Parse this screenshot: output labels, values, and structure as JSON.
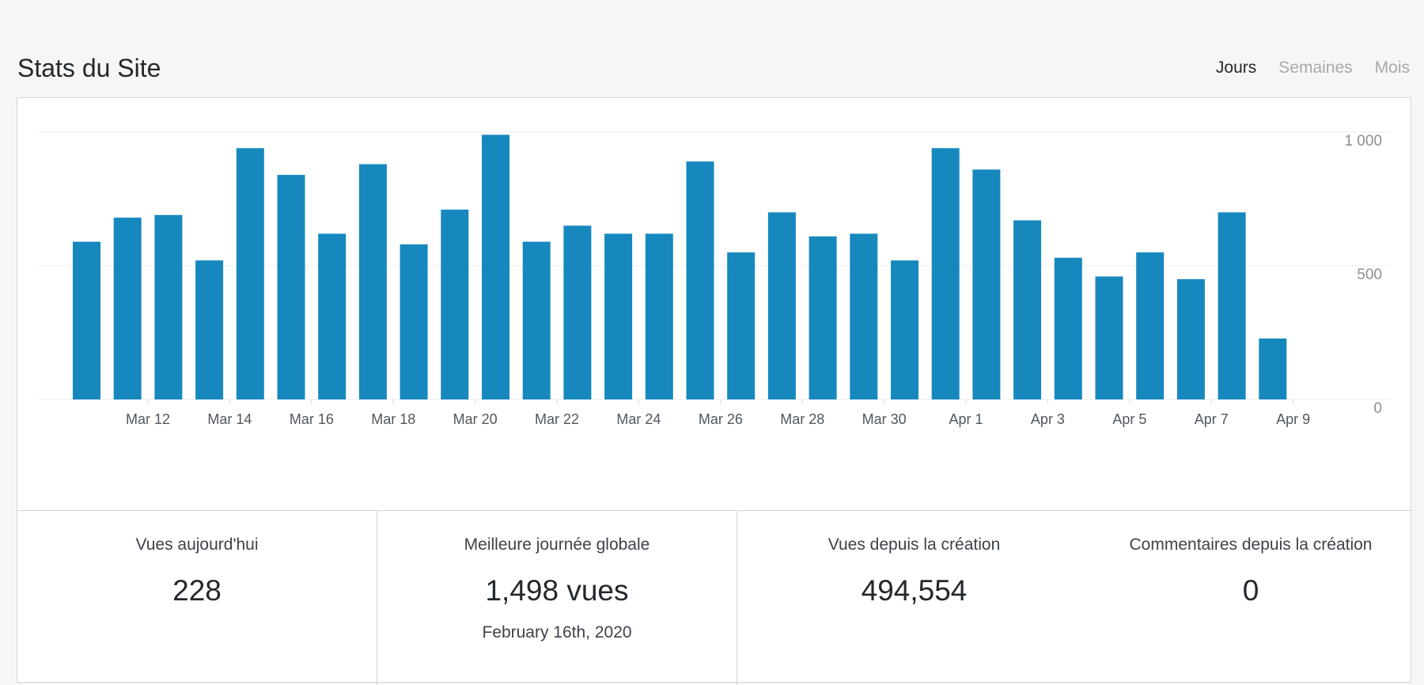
{
  "header": {
    "title": "Stats du Site",
    "tabs": [
      {
        "label": "Jours",
        "active": true
      },
      {
        "label": "Semaines",
        "active": false
      },
      {
        "label": "Mois",
        "active": false
      }
    ]
  },
  "chart_data": {
    "type": "bar",
    "color": "#1688be",
    "title": "",
    "xlabel": "",
    "ylabel": "",
    "ylim": [
      0,
      1000
    ],
    "yticks": [
      0,
      500,
      1000
    ],
    "ytick_labels": [
      "0",
      "500",
      "1 000"
    ],
    "y_axis_position": "right",
    "grid": true,
    "categories": [
      "Mar 11",
      "Mar 12",
      "Mar 13",
      "Mar 14",
      "Mar 15",
      "Mar 16",
      "Mar 17",
      "Mar 18",
      "Mar 19",
      "Mar 20",
      "Mar 21",
      "Mar 22",
      "Mar 23",
      "Mar 24",
      "Mar 25",
      "Mar 26",
      "Mar 27",
      "Mar 28",
      "Mar 29",
      "Mar 30",
      "Mar 31",
      "Apr 1",
      "Apr 2",
      "Apr 3",
      "Apr 4",
      "Apr 5",
      "Apr 6",
      "Apr 7",
      "Apr 8",
      "Apr 9"
    ],
    "tick_labels": [
      "Mar 12",
      "Mar 14",
      "Mar 16",
      "Mar 18",
      "Mar 20",
      "Mar 22",
      "Mar 24",
      "Mar 26",
      "Mar 28",
      "Mar 30",
      "Apr 1",
      "Apr 3",
      "Apr 5",
      "Apr 7",
      "Apr 9"
    ],
    "values": [
      590,
      680,
      690,
      520,
      940,
      840,
      620,
      880,
      580,
      710,
      990,
      590,
      650,
      620,
      620,
      890,
      550,
      700,
      610,
      620,
      520,
      940,
      860,
      670,
      530,
      460,
      550,
      450,
      700,
      228
    ]
  },
  "stats": [
    {
      "label": "Vues aujourd'hui",
      "value": "228",
      "sub": ""
    },
    {
      "label": "Meilleure journée globale",
      "value": "1,498 vues",
      "sub": "February 16th, 2020"
    },
    {
      "label": "Vues depuis la création",
      "value": "494,554",
      "sub": ""
    },
    {
      "label": "Commentaires depuis la création",
      "value": "0",
      "sub": ""
    }
  ]
}
